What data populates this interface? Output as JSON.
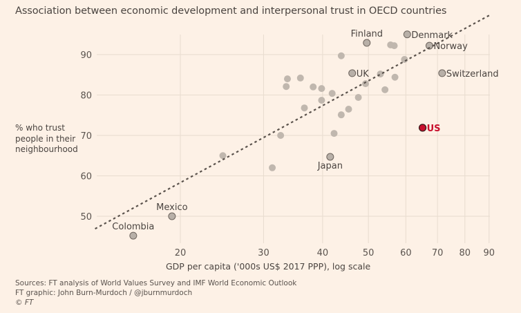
{
  "chart_data": {
    "type": "scatter",
    "title": "Association between economic development and interpersonal trust in OECD countries",
    "xlabel": "GDP per capita ('000s US$ 2017 PPP), log scale",
    "ylabel": "% who trust people in their neighbourhood",
    "x_scale": "log",
    "xlim": [
      13,
      92
    ],
    "ylim": [
      44,
      97
    ],
    "x_ticks": [
      20,
      30,
      40,
      50,
      60,
      70,
      80,
      90
    ],
    "y_ticks": [
      50,
      60,
      70,
      80,
      90
    ],
    "grid": true,
    "trendline": {
      "style": "dotted",
      "x": [
        13.2,
        90.4
      ],
      "y": [
        46.9,
        99.8
      ]
    },
    "highlight_color": "#c8102e",
    "point_color": "#c0b7ae",
    "labelled_point_color": "#b8b0a8",
    "points": [
      {
        "label": "Colombia",
        "x": 15.9,
        "y": 45.2,
        "labelled": true,
        "label_pos": "above"
      },
      {
        "label": "Mexico",
        "x": 19.2,
        "y": 50.0,
        "labelled": true,
        "label_pos": "above"
      },
      {
        "label": "",
        "x": 24.6,
        "y": 65.0
      },
      {
        "label": "",
        "x": 31.3,
        "y": 62.0
      },
      {
        "label": "",
        "x": 32.6,
        "y": 70.0
      },
      {
        "label": "",
        "x": 33.5,
        "y": 82.1
      },
      {
        "label": "",
        "x": 33.7,
        "y": 84.0
      },
      {
        "label": "",
        "x": 35.9,
        "y": 84.2
      },
      {
        "label": "",
        "x": 36.6,
        "y": 76.8
      },
      {
        "label": "",
        "x": 38.2,
        "y": 82.0
      },
      {
        "label": "",
        "x": 39.8,
        "y": 81.6
      },
      {
        "label": "",
        "x": 39.8,
        "y": 78.7
      },
      {
        "label": "",
        "x": 41.9,
        "y": 80.4
      },
      {
        "label": "",
        "x": 42.3,
        "y": 70.5
      },
      {
        "label": "Japan",
        "x": 41.5,
        "y": 64.7,
        "labelled": true,
        "label_pos": "below"
      },
      {
        "label": "",
        "x": 43.8,
        "y": 75.1
      },
      {
        "label": "",
        "x": 43.8,
        "y": 89.7
      },
      {
        "label": "",
        "x": 45.4,
        "y": 76.5
      },
      {
        "label": "UK",
        "x": 46.2,
        "y": 85.4,
        "labelled": true,
        "label_pos": "right"
      },
      {
        "label": "",
        "x": 47.6,
        "y": 79.4
      },
      {
        "label": "",
        "x": 49.3,
        "y": 82.8
      },
      {
        "label": "Finland",
        "x": 49.6,
        "y": 92.9,
        "labelled": true,
        "label_pos": "above"
      },
      {
        "label": "",
        "x": 53.0,
        "y": 85.2
      },
      {
        "label": "",
        "x": 54.2,
        "y": 81.3
      },
      {
        "label": "",
        "x": 55.7,
        "y": 92.4
      },
      {
        "label": "",
        "x": 56.7,
        "y": 92.2
      },
      {
        "label": "",
        "x": 56.9,
        "y": 84.4
      },
      {
        "label": "",
        "x": 59.6,
        "y": 88.8
      },
      {
        "label": "Denmark",
        "x": 60.4,
        "y": 95.0,
        "labelled": true,
        "label_pos": "right"
      },
      {
        "label": "Norway",
        "x": 67.3,
        "y": 92.2,
        "labelled": true,
        "label_pos": "right"
      },
      {
        "label": "Switzerland",
        "x": 71.6,
        "y": 85.4,
        "labelled": true,
        "label_pos": "right"
      },
      {
        "label": "US",
        "x": 65.1,
        "y": 71.9,
        "labelled": true,
        "label_pos": "right",
        "highlight": true
      }
    ]
  },
  "text": {
    "title": "Association between economic development and interpersonal trust in OECD countries",
    "ylabel_lines": [
      "% who trust",
      "people in their",
      "neighbourhood"
    ],
    "xlabel": "GDP per capita ('000s US$ 2017 PPP), log scale",
    "sources": "Sources: FT analysis of World Values Survey and IMF World Economic Outlook",
    "credit": "FT graphic: John Burn-Murdoch / @jburnmurdoch",
    "copyright": "© FT"
  }
}
